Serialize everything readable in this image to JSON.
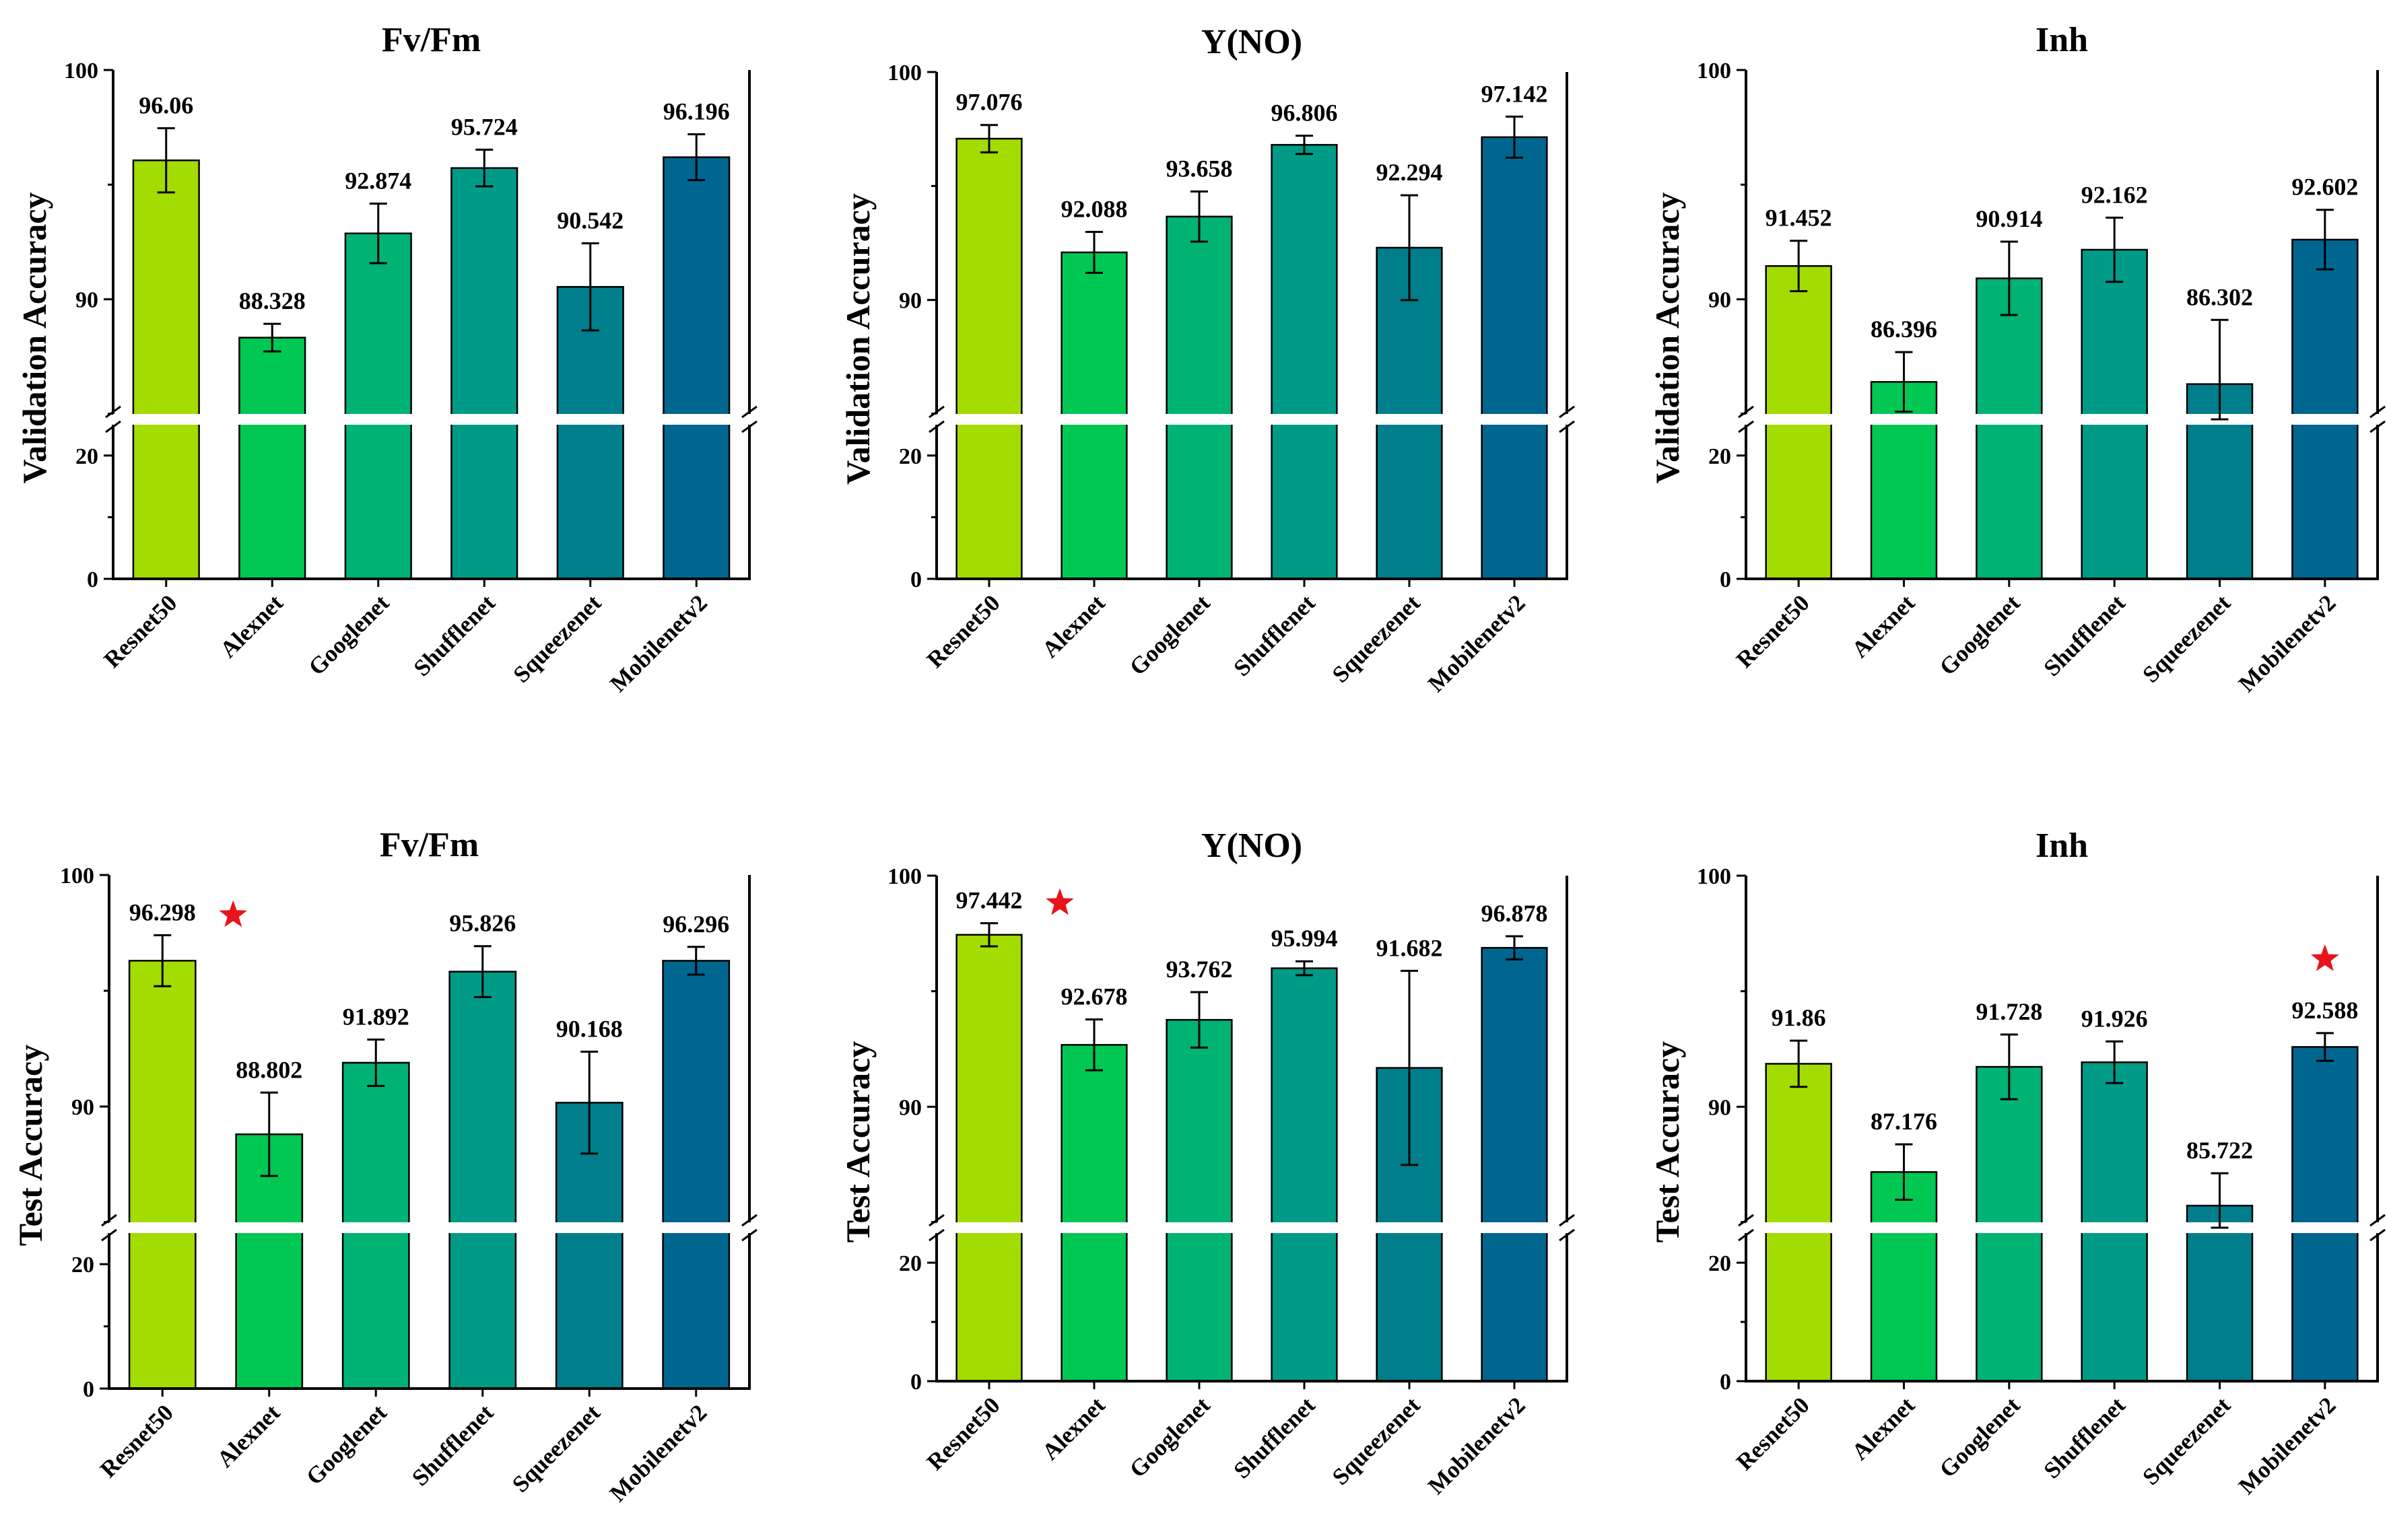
{
  "chart_data": [
    {
      "type": "bar",
      "title": "Fv/Fm",
      "ylabel": "Validation Accuracy",
      "categories": [
        "Resnet50",
        "Alexnet",
        "Googlenet",
        "Shufflenet",
        "Squeezenet",
        "Mobilenetv2"
      ],
      "values": [
        96.06,
        88.328,
        92.874,
        95.724,
        90.542,
        96.196
      ],
      "errors": [
        1.4,
        0.6,
        1.3,
        0.8,
        1.9,
        1.0
      ],
      "value_labels": [
        "96.06",
        "88.328",
        "92.874",
        "95.724",
        "90.542",
        "96.196"
      ],
      "yticks": [
        "0",
        "20",
        "90",
        "100"
      ],
      "axis_break": [
        25,
        85
      ],
      "ylim": [
        0,
        100
      ],
      "best_index": null
    },
    {
      "type": "bar",
      "title": "Y(NO)",
      "ylabel": "Validation Accuracy",
      "categories": [
        "Resnet50",
        "Alexnet",
        "Googlenet",
        "Shufflenet",
        "Squeezenet",
        "Mobilenetv2"
      ],
      "values": [
        97.076,
        92.088,
        93.658,
        96.806,
        92.294,
        97.142
      ],
      "errors": [
        0.6,
        0.9,
        1.1,
        0.4,
        2.3,
        0.9
      ],
      "value_labels": [
        "97.076",
        "92.088",
        "93.658",
        "96.806",
        "92.294",
        "97.142"
      ],
      "yticks": [
        "0",
        "20",
        "90",
        "100"
      ],
      "axis_break": [
        25,
        85
      ],
      "ylim": [
        0,
        100
      ],
      "best_index": null
    },
    {
      "type": "bar",
      "title": "Inh",
      "ylabel": "Validation Accuracy",
      "categories": [
        "Resnet50",
        "Alexnet",
        "Googlenet",
        "Shufflenet",
        "Squeezenet",
        "Mobilenetv2"
      ],
      "values": [
        91.452,
        86.396,
        90.914,
        92.162,
        86.302,
        92.602
      ],
      "errors": [
        1.1,
        1.3,
        1.6,
        1.4,
        2.8,
        1.3
      ],
      "value_labels": [
        "91.452",
        "86.396",
        "90.914",
        "92.162",
        "86.302",
        "92.602"
      ],
      "yticks": [
        "0",
        "20",
        "90",
        "100"
      ],
      "axis_break": [
        25,
        85
      ],
      "ylim": [
        0,
        100
      ],
      "best_index": null
    },
    {
      "type": "bar",
      "title": "Fv/Fm",
      "ylabel": "Test Accuracy",
      "categories": [
        "Resnet50",
        "Alexnet",
        "Googlenet",
        "Shufflenet",
        "Squeezenet",
        "Mobilenetv2"
      ],
      "values": [
        96.298,
        88.802,
        91.892,
        95.826,
        90.168,
        96.296
      ],
      "errors": [
        1.1,
        1.8,
        1.0,
        1.1,
        2.2,
        0.6
      ],
      "value_labels": [
        "96.298",
        "88.802",
        "91.892",
        "95.826",
        "90.168",
        "96.296"
      ],
      "yticks": [
        "0",
        "20",
        "90",
        "100"
      ],
      "axis_break": [
        25,
        85
      ],
      "ylim": [
        0,
        100
      ],
      "best_index": 0
    },
    {
      "type": "bar",
      "title": "Y(NO)",
      "ylabel": "Test Accuracy",
      "categories": [
        "Resnet50",
        "Alexnet",
        "Googlenet",
        "Shufflenet",
        "Squeezenet",
        "Mobilenetv2"
      ],
      "values": [
        97.442,
        92.678,
        93.762,
        95.994,
        91.682,
        96.878
      ],
      "errors": [
        0.5,
        1.1,
        1.2,
        0.3,
        4.2,
        0.5
      ],
      "value_labels": [
        "97.442",
        "92.678",
        "93.762",
        "95.994",
        "91.682",
        "96.878"
      ],
      "yticks": [
        "0",
        "20",
        "90",
        "100"
      ],
      "axis_break": [
        25,
        85
      ],
      "ylim": [
        0,
        100
      ],
      "best_index": 0
    },
    {
      "type": "bar",
      "title": "Inh",
      "ylabel": "Test Accuracy",
      "categories": [
        "Resnet50",
        "Alexnet",
        "Googlenet",
        "Shufflenet",
        "Squeezenet",
        "Mobilenetv2"
      ],
      "values": [
        91.86,
        87.176,
        91.728,
        91.926,
        85.722,
        92.588
      ],
      "errors": [
        1.0,
        1.2,
        1.4,
        0.9,
        1.4,
        0.6
      ],
      "value_labels": [
        "91.86",
        "87.176",
        "91.728",
        "91.926",
        "85.722",
        "92.588"
      ],
      "yticks": [
        "0",
        "20",
        "90",
        "100"
      ],
      "axis_break": [
        25,
        85
      ],
      "ylim": [
        0,
        100
      ],
      "best_index": 5
    }
  ],
  "colors": {
    "bars": [
      "#a3dc00",
      "#00c853",
      "#00b374",
      "#009b87",
      "#007e8c",
      "#006690"
    ],
    "star": "#e8141b",
    "axis": "#000000"
  },
  "best_marker_symbol": "star-icon"
}
